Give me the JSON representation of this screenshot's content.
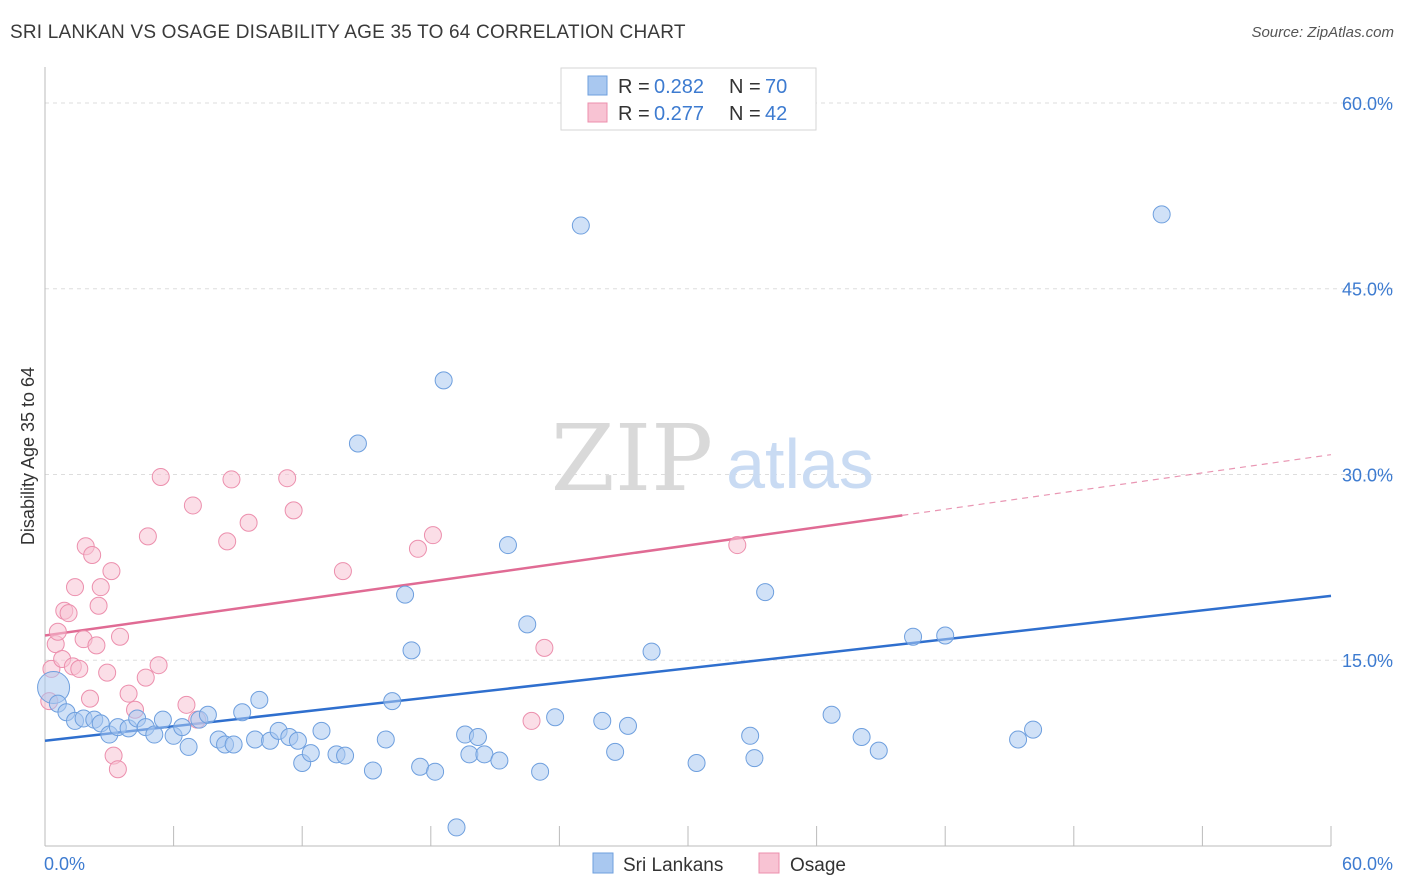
{
  "header": {
    "title": "SRI LANKAN VS OSAGE DISABILITY AGE 35 TO 64 CORRELATION CHART",
    "source": "Source: ZipAtlas.com"
  },
  "watermark": {
    "zip": "ZIP",
    "atlas": "atlas"
  },
  "colors": {
    "blue_fill": "#a9c8f0",
    "blue_stroke": "#6e9fde",
    "blue_line": "#2f6fce",
    "pink_fill": "#f8c3d3",
    "pink_stroke": "#ec8fad",
    "pink_line": "#e06b94",
    "tick_text": "#3d7bd0",
    "grid": "#dddddd"
  },
  "legend": {
    "rows": [
      {
        "r_label": "R = ",
        "r_value": "0.282",
        "n_label": "N = ",
        "n_value": "70"
      },
      {
        "r_label": "R = ",
        "r_value": "0.277",
        "n_label": "N = ",
        "n_value": "42"
      }
    ]
  },
  "bottom_legend": {
    "items": [
      "Sri Lankans",
      "Osage"
    ]
  },
  "chart_data": {
    "type": "scatter",
    "title": "SRI LANKAN VS OSAGE DISABILITY AGE 35 TO 64 CORRELATION CHART",
    "xlabel": "",
    "ylabel": "Disability Age 35 to 64",
    "xlim": [
      0,
      60
    ],
    "ylim": [
      0,
      62.5
    ],
    "x_tick_labels": [
      "0.0%",
      "60.0%"
    ],
    "y_ticks": [
      15,
      30,
      45,
      60
    ],
    "y_tick_labels": [
      "15.0%",
      "30.0%",
      "45.0%",
      "60.0%"
    ],
    "grid": true,
    "legend_position": "top-center",
    "series": [
      {
        "name": "Sri Lankans",
        "r": 0.282,
        "n": 70,
        "trend": {
          "x": [
            0,
            60
          ],
          "y": [
            8.5,
            20.2
          ]
        },
        "points": [
          [
            0.4,
            12.8
          ],
          [
            0.6,
            11.5
          ],
          [
            1.0,
            10.8
          ],
          [
            1.4,
            10.1
          ],
          [
            1.8,
            10.3
          ],
          [
            2.3,
            10.2
          ],
          [
            2.6,
            9.9
          ],
          [
            3.0,
            9.0
          ],
          [
            3.4,
            9.6
          ],
          [
            3.9,
            9.5
          ],
          [
            4.3,
            10.3
          ],
          [
            4.7,
            9.6
          ],
          [
            5.1,
            9.0
          ],
          [
            5.5,
            10.2
          ],
          [
            6.0,
            8.9
          ],
          [
            6.4,
            9.6
          ],
          [
            6.7,
            8.0
          ],
          [
            7.2,
            10.2
          ],
          [
            7.6,
            10.6
          ],
          [
            8.1,
            8.6
          ],
          [
            8.4,
            8.2
          ],
          [
            8.8,
            8.2
          ],
          [
            9.2,
            10.8
          ],
          [
            9.8,
            8.6
          ],
          [
            10.0,
            11.8
          ],
          [
            10.5,
            8.5
          ],
          [
            10.9,
            9.3
          ],
          [
            11.4,
            8.8
          ],
          [
            11.8,
            8.5
          ],
          [
            12.0,
            6.7
          ],
          [
            12.4,
            7.5
          ],
          [
            12.9,
            9.3
          ],
          [
            13.6,
            7.4
          ],
          [
            14.0,
            7.3
          ],
          [
            14.6,
            32.5
          ],
          [
            15.3,
            6.1
          ],
          [
            15.9,
            8.6
          ],
          [
            16.2,
            11.7
          ],
          [
            16.8,
            20.3
          ],
          [
            17.1,
            15.8
          ],
          [
            17.5,
            6.4
          ],
          [
            18.2,
            6.0
          ],
          [
            18.6,
            37.6
          ],
          [
            19.2,
            1.5
          ],
          [
            19.6,
            9.0
          ],
          [
            19.8,
            7.4
          ],
          [
            20.2,
            8.8
          ],
          [
            20.5,
            7.4
          ],
          [
            21.2,
            6.9
          ],
          [
            21.6,
            24.3
          ],
          [
            22.5,
            17.9
          ],
          [
            23.1,
            6.0
          ],
          [
            23.8,
            10.4
          ],
          [
            25.0,
            50.1
          ],
          [
            26.0,
            10.1
          ],
          [
            26.6,
            7.6
          ],
          [
            27.2,
            9.7
          ],
          [
            28.3,
            15.7
          ],
          [
            30.4,
            6.7
          ],
          [
            32.9,
            8.9
          ],
          [
            33.1,
            7.1
          ],
          [
            33.6,
            20.5
          ],
          [
            36.7,
            10.6
          ],
          [
            38.1,
            8.8
          ],
          [
            38.9,
            7.7
          ],
          [
            40.5,
            16.9
          ],
          [
            42.0,
            17.0
          ],
          [
            45.4,
            8.6
          ],
          [
            46.1,
            9.4
          ],
          [
            52.1,
            51.0
          ]
        ]
      },
      {
        "name": "Osage",
        "r": 0.277,
        "n": 42,
        "trend": {
          "x": [
            0,
            40
          ],
          "y": [
            17.0,
            26.7
          ]
        },
        "trend_extension": {
          "x": [
            40,
            60
          ],
          "y": [
            26.7,
            31.6
          ]
        },
        "points": [
          [
            0.2,
            11.7
          ],
          [
            0.3,
            14.3
          ],
          [
            0.5,
            16.3
          ],
          [
            0.6,
            17.3
          ],
          [
            0.8,
            15.1
          ],
          [
            0.9,
            19.0
          ],
          [
            1.1,
            18.8
          ],
          [
            1.3,
            14.5
          ],
          [
            1.4,
            20.9
          ],
          [
            1.6,
            14.3
          ],
          [
            1.8,
            16.7
          ],
          [
            1.9,
            24.2
          ],
          [
            2.1,
            11.9
          ],
          [
            2.2,
            23.5
          ],
          [
            2.4,
            16.2
          ],
          [
            2.5,
            19.4
          ],
          [
            2.6,
            20.9
          ],
          [
            2.9,
            14.0
          ],
          [
            3.1,
            22.2
          ],
          [
            3.2,
            7.3
          ],
          [
            3.4,
            6.2
          ],
          [
            3.5,
            16.9
          ],
          [
            3.9,
            12.3
          ],
          [
            4.2,
            11.0
          ],
          [
            4.7,
            13.6
          ],
          [
            4.8,
            25.0
          ],
          [
            5.3,
            14.6
          ],
          [
            5.4,
            29.8
          ],
          [
            6.6,
            11.4
          ],
          [
            6.9,
            27.5
          ],
          [
            7.1,
            10.2
          ],
          [
            8.5,
            24.6
          ],
          [
            8.7,
            29.6
          ],
          [
            9.5,
            26.1
          ],
          [
            11.3,
            29.7
          ],
          [
            11.6,
            27.1
          ],
          [
            13.9,
            22.2
          ],
          [
            17.4,
            24.0
          ],
          [
            18.1,
            25.1
          ],
          [
            22.7,
            10.1
          ],
          [
            23.3,
            16.0
          ],
          [
            32.3,
            24.3
          ]
        ]
      }
    ]
  }
}
